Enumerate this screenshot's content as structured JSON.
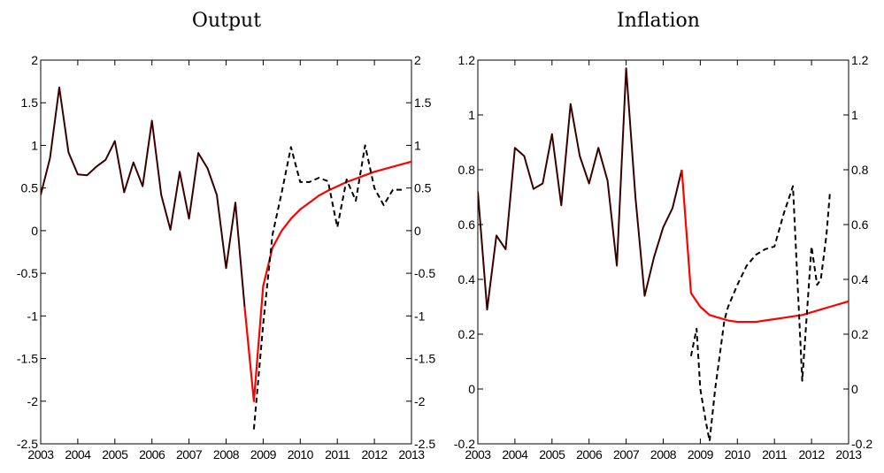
{
  "chart_data": [
    {
      "type": "line",
      "title": "Output",
      "xlabel": "",
      "ylabel": "",
      "xlim": [
        2003,
        2013
      ],
      "ylim": [
        -2.5,
        2
      ],
      "x_ticks": [
        "2003",
        "2004",
        "2005",
        "2006",
        "2007",
        "2008",
        "2009",
        "2010",
        "2011",
        "2012",
        "2013"
      ],
      "y_ticks": [
        "-2.5",
        "-2",
        "-1.5",
        "-1",
        "-0.5",
        "0",
        "0.5",
        "1",
        "1.5",
        "2"
      ],
      "grid": false,
      "series": [
        {
          "style": "solid",
          "color": "#3a0000",
          "x": [
            2003.0,
            2003.25,
            2003.5,
            2003.75,
            2004.0,
            2004.25,
            2004.5,
            2004.75,
            2005.0,
            2005.25,
            2005.5,
            2005.75,
            2006.0,
            2006.25,
            2006.5,
            2006.75,
            2007.0,
            2007.25,
            2007.5,
            2007.75,
            2008.0,
            2008.25,
            2008.5
          ],
          "y": [
            0.42,
            0.85,
            1.68,
            0.92,
            0.66,
            0.65,
            0.75,
            0.83,
            1.05,
            0.45,
            0.8,
            0.52,
            1.29,
            0.42,
            0.01,
            0.69,
            0.14,
            0.91,
            0.73,
            0.42,
            -0.44,
            0.33,
            -0.9
          ]
        },
        {
          "style": "solid",
          "color": "#ff0000",
          "x": [
            2008.5,
            2008.75,
            2009.0,
            2009.25,
            2009.5,
            2009.75,
            2010.0,
            2010.25,
            2010.5,
            2010.75,
            2011.0,
            2011.25,
            2011.5,
            2011.75,
            2012.0,
            2012.25,
            2012.5,
            2012.75,
            2013.0
          ],
          "y": [
            -0.9,
            -2.0,
            -0.65,
            -0.2,
            0.0,
            0.14,
            0.25,
            0.33,
            0.41,
            0.47,
            0.52,
            0.57,
            0.61,
            0.65,
            0.69,
            0.72,
            0.75,
            0.78,
            0.81
          ]
        },
        {
          "style": "dashed",
          "color": "#000000",
          "x": [
            2008.75,
            2009.0,
            2009.25,
            2009.5,
            2009.75,
            2010.0,
            2010.25,
            2010.5,
            2010.75,
            2011.0,
            2011.25,
            2011.5,
            2011.75,
            2012.0,
            2012.25,
            2012.5,
            2012.75
          ],
          "y": [
            -2.33,
            -1.1,
            -0.05,
            0.45,
            0.98,
            0.57,
            0.57,
            0.62,
            0.58,
            0.04,
            0.6,
            0.35,
            1.0,
            0.5,
            0.3,
            0.48,
            0.48
          ]
        }
      ]
    },
    {
      "type": "line",
      "title": "Inflation",
      "xlabel": "",
      "ylabel": "",
      "xlim": [
        2003,
        2013
      ],
      "ylim": [
        -0.2,
        1.2
      ],
      "x_ticks": [
        "2003",
        "2004",
        "2005",
        "2006",
        "2007",
        "2008",
        "2009",
        "2010",
        "2011",
        "2012",
        "2013"
      ],
      "y_ticks": [
        "-0.2",
        "0",
        "0.2",
        "0.4",
        "0.6",
        "0.8",
        "1",
        "1.2"
      ],
      "grid": false,
      "series": [
        {
          "style": "solid",
          "color": "#3a0000",
          "x": [
            2003.0,
            2003.25,
            2003.5,
            2003.75,
            2004.0,
            2004.25,
            2004.5,
            2004.75,
            2005.0,
            2005.25,
            2005.5,
            2005.75,
            2006.0,
            2006.25,
            2006.5,
            2006.75,
            2007.0,
            2007.25,
            2007.5,
            2007.75,
            2008.0,
            2008.25,
            2008.5
          ],
          "y": [
            0.72,
            0.29,
            0.56,
            0.51,
            0.88,
            0.85,
            0.73,
            0.75,
            0.93,
            0.67,
            1.04,
            0.85,
            0.75,
            0.88,
            0.76,
            0.45,
            1.17,
            0.7,
            0.34,
            0.48,
            0.59,
            0.66,
            0.8
          ]
        },
        {
          "style": "solid",
          "color": "#ff0000",
          "x": [
            2008.5,
            2008.75,
            2009.0,
            2009.25,
            2009.5,
            2009.75,
            2010.0,
            2010.25,
            2010.5,
            2010.75,
            2011.0,
            2011.25,
            2011.5,
            2011.75,
            2012.0,
            2012.25,
            2012.5,
            2012.75,
            2013.0
          ],
          "y": [
            0.8,
            0.35,
            0.3,
            0.27,
            0.26,
            0.25,
            0.245,
            0.245,
            0.245,
            0.25,
            0.255,
            0.26,
            0.265,
            0.27,
            0.28,
            0.29,
            0.3,
            0.31,
            0.32
          ]
        },
        {
          "style": "dashed",
          "color": "#000000",
          "x": [
            2008.75,
            2008.9,
            2009.0,
            2009.15,
            2009.25,
            2009.4,
            2009.5,
            2009.65,
            2009.75,
            2010.0,
            2010.25,
            2010.5,
            2010.75,
            2011.0,
            2011.25,
            2011.5,
            2011.75,
            2012.0,
            2012.15,
            2012.25,
            2012.4,
            2012.5
          ],
          "y": [
            0.12,
            0.22,
            0.0,
            -0.12,
            -0.19,
            0.0,
            0.1,
            0.25,
            0.3,
            0.38,
            0.45,
            0.49,
            0.51,
            0.52,
            0.64,
            0.74,
            0.03,
            0.52,
            0.38,
            0.4,
            0.56,
            0.72
          ]
        }
      ]
    }
  ]
}
